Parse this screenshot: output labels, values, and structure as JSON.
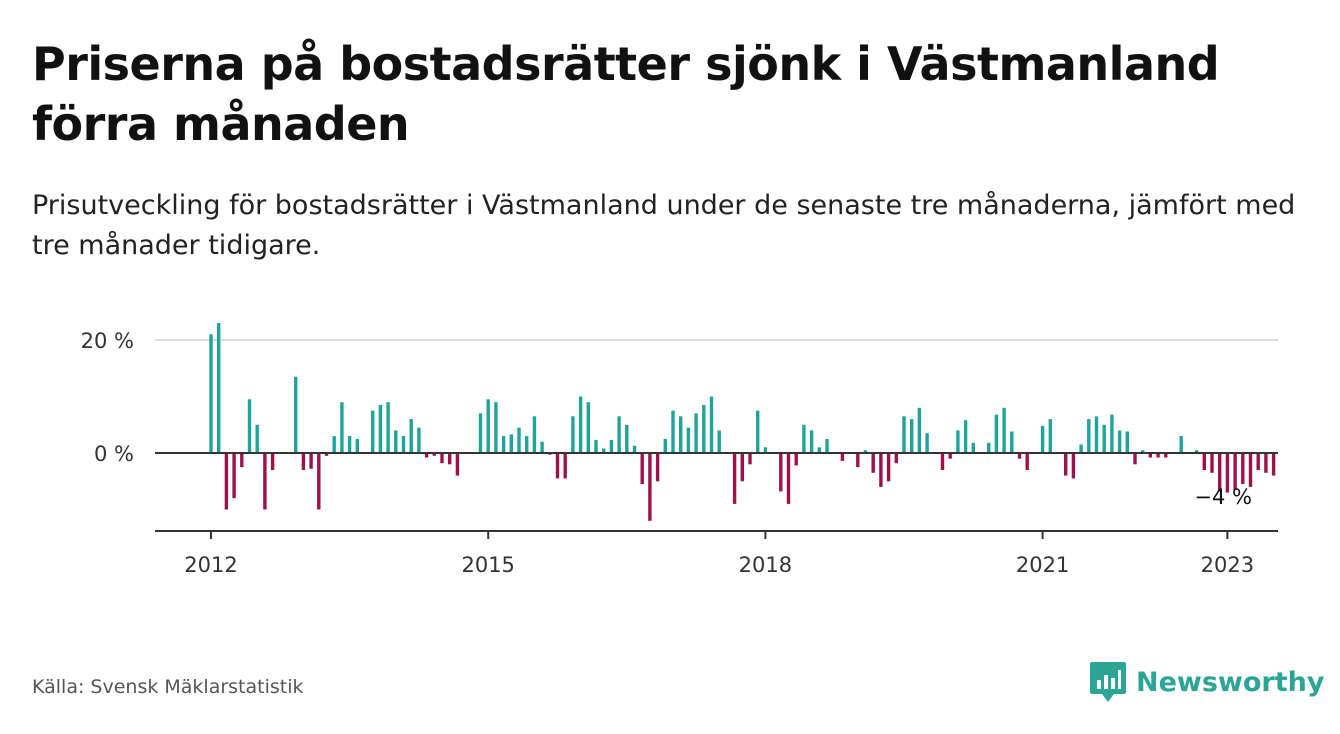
{
  "title": "Priserna på bostadsrätter sjönk i Västmanland förra månaden",
  "subtitle": "Prisutveckling för bostadsrätter i Västmanland under de senaste tre månaderna, jämfört med tre månader tidigare.",
  "source": "Källa: Svensk Mäklarstatistik",
  "brand": "Newsworthy",
  "colors": {
    "positive": "#1fa39a",
    "negative": "#a0104c",
    "axis": "#333333",
    "grid": "#dddddd",
    "brand": "#2aa596"
  },
  "chart_data": {
    "type": "bar",
    "title": "Priserna på bostadsrätter sjönk i Västmanland förra månaden",
    "subtitle": "Prisutveckling för bostadsrätter i Västmanland under de senaste tre månaderna, jämfört med tre månader tidigare.",
    "unit": "%",
    "ylim": [
      -14,
      22
    ],
    "yticks": [
      0,
      20
    ],
    "ytick_labels": [
      "0 %",
      "20 %"
    ],
    "xticks": [
      "2012",
      "2015",
      "2018",
      "2021",
      "2023"
    ],
    "grid": true,
    "annotation": "−4 %",
    "start": "2012-01",
    "end": "2023-01",
    "values": [
      21,
      23,
      -10,
      -8,
      -2.5,
      9.5,
      5,
      -10,
      -3,
      0,
      0,
      13.5,
      -3,
      -2.8,
      -10,
      -0.5,
      3,
      9,
      3,
      2.5,
      0,
      7.5,
      8.5,
      9,
      4,
      3,
      6,
      4.5,
      -0.8,
      -0.5,
      -1.8,
      -2,
      -4,
      0,
      0,
      7,
      9.5,
      9,
      3,
      3.3,
      4.5,
      3,
      6.5,
      2,
      -0.3,
      -4.5,
      -4.5,
      6.5,
      10,
      9,
      2.3,
      0.8,
      2.3,
      6.5,
      5,
      1.3,
      -5.5,
      -12,
      -5,
      2.5,
      7.5,
      6.5,
      4.5,
      7,
      8.5,
      10,
      4,
      0,
      -9,
      -5,
      -2,
      7.5,
      1,
      0,
      -6.8,
      -9,
      -2.2,
      5,
      4,
      1,
      2.5,
      0,
      -1.4,
      0,
      -2.5,
      0.5,
      -3.5,
      -6,
      -5,
      -1.8,
      6.5,
      6,
      8,
      3.5,
      0,
      -3,
      -1,
      4,
      5.8,
      1.8,
      0,
      1.8,
      6.8,
      8,
      3.8,
      -1,
      -3,
      0,
      4.8,
      6,
      0,
      -4,
      -4.5,
      1.5,
      6,
      6.5,
      5,
      6.8,
      4,
      3.8,
      -2,
      0.5,
      -0.8,
      -0.8,
      -0.8,
      0,
      3,
      0,
      0.5,
      -3,
      -3.5,
      -6.8,
      -7,
      -6.5,
      -5.5,
      -6,
      -3,
      -3.5,
      -4
    ]
  }
}
